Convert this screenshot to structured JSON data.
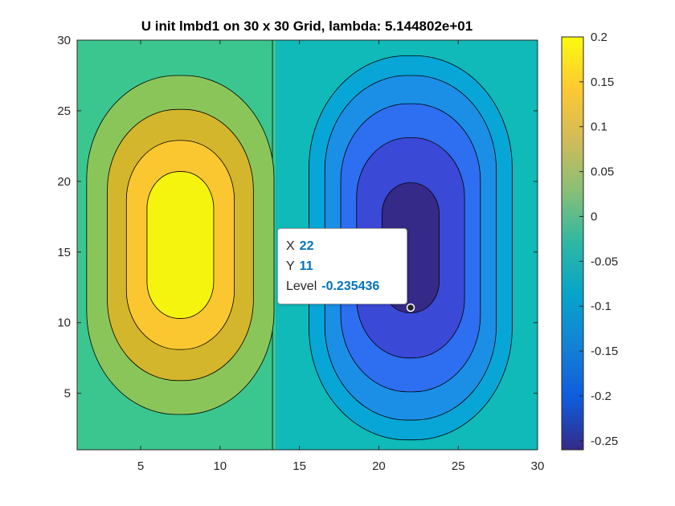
{
  "chart_data": {
    "type": "contour",
    "title": "U init lmbd1 on 30 x 30 Grid, lambda: 5.144802e+01",
    "grid_size": [
      30,
      30
    ],
    "xlim": [
      1,
      30
    ],
    "ylim": [
      1,
      30
    ],
    "x_ticks": [
      "5",
      "10",
      "15",
      "20",
      "25",
      "30"
    ],
    "y_ticks": [
      "5",
      "10",
      "15",
      "20",
      "25",
      "30"
    ],
    "colorbar": {
      "limits": [
        -0.26,
        0.2
      ],
      "ticks": [
        "0.2",
        "0.15",
        "0.1",
        "0.05",
        "0",
        "-0.05",
        "-0.1",
        "-0.15",
        "-0.2",
        "-0.25"
      ],
      "colormap": "parula"
    },
    "extrema": [
      {
        "kind": "max",
        "x": 7.5,
        "y": 15.5,
        "value": 0.2
      },
      {
        "kind": "min",
        "x": 22,
        "y": 15.5,
        "value": -0.26
      }
    ],
    "datatip": {
      "x_label": "X",
      "x": "22",
      "y_label": "Y",
      "y": "11",
      "level_label": "Level",
      "level": "-0.235436"
    }
  }
}
